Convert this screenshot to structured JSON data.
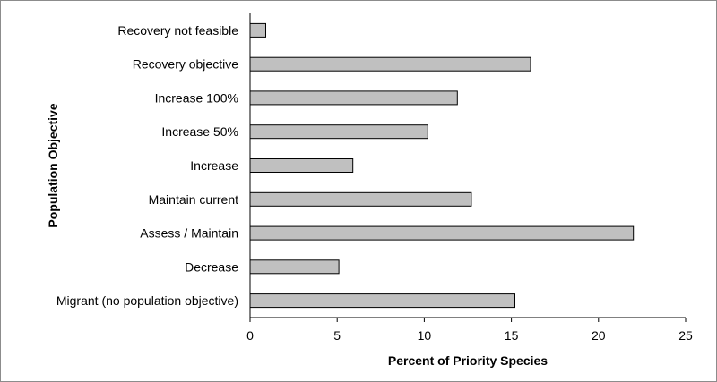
{
  "chart_data": {
    "type": "bar",
    "orientation": "horizontal",
    "categories": [
      "Recovery not feasible",
      "Recovery objective",
      "Increase 100%",
      "Increase 50%",
      "Increase",
      "Maintain current",
      "Assess / Maintain",
      "Decrease",
      "Migrant (no population objective)"
    ],
    "values": [
      0.9,
      16.1,
      11.9,
      10.2,
      5.9,
      12.7,
      22.0,
      5.1,
      15.2
    ],
    "xlabel": "Percent of Priority Species",
    "ylabel": "Population Objective",
    "xlim": [
      0,
      25
    ],
    "xticks": [
      0,
      5,
      10,
      15,
      20,
      25
    ],
    "grid": false,
    "bar_color": "#c0c0c0",
    "bar_edge_color": "#000000"
  }
}
